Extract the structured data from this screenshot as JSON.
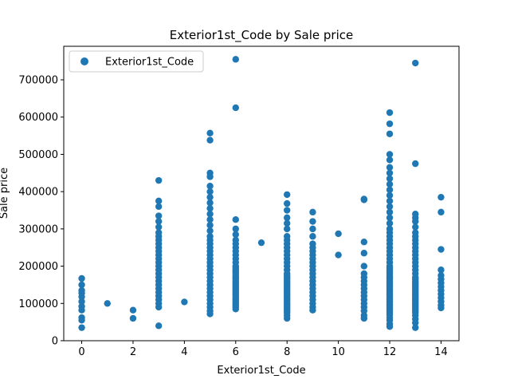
{
  "chart_data": {
    "type": "scatter",
    "title": "Exterior1st_Code by Sale price",
    "xlabel": "Exterior1st_Code",
    "ylabel": "Sale price",
    "xlim": [
      -0.7,
      14.7
    ],
    "ylim": [
      0,
      790000
    ],
    "xticks": [
      0,
      2,
      4,
      6,
      8,
      10,
      12,
      14
    ],
    "yticks": [
      0,
      100000,
      200000,
      300000,
      400000,
      500000,
      600000,
      700000
    ],
    "legend": {
      "position": "top-left",
      "entries": [
        "Exterior1st_Code"
      ]
    },
    "grid": false,
    "colors": {
      "point": "#1f77b4"
    },
    "series": [
      {
        "name": "Exterior1st_Code",
        "points": [
          [
            0,
            167000
          ],
          [
            0,
            150000
          ],
          [
            0,
            135000
          ],
          [
            0,
            128000
          ],
          [
            0,
            118000
          ],
          [
            0,
            105000
          ],
          [
            0,
            92000
          ],
          [
            0,
            82000
          ],
          [
            0,
            62000
          ],
          [
            0,
            55000
          ],
          [
            0,
            35000
          ],
          [
            1,
            100000
          ],
          [
            2,
            82000
          ],
          [
            2,
            60000
          ],
          [
            3,
            430000
          ],
          [
            3,
            375000
          ],
          [
            3,
            360000
          ],
          [
            3,
            335000
          ],
          [
            3,
            320000
          ],
          [
            3,
            305000
          ],
          [
            3,
            290000
          ],
          [
            3,
            280000
          ],
          [
            3,
            270000
          ],
          [
            3,
            260000
          ],
          [
            3,
            250000
          ],
          [
            3,
            240000
          ],
          [
            3,
            230000
          ],
          [
            3,
            220000
          ],
          [
            3,
            210000
          ],
          [
            3,
            200000
          ],
          [
            3,
            190000
          ],
          [
            3,
            180000
          ],
          [
            3,
            170000
          ],
          [
            3,
            160000
          ],
          [
            3,
            150000
          ],
          [
            3,
            140000
          ],
          [
            3,
            130000
          ],
          [
            3,
            120000
          ],
          [
            3,
            110000
          ],
          [
            3,
            100000
          ],
          [
            3,
            90000
          ],
          [
            3,
            40000
          ],
          [
            4,
            104000
          ],
          [
            5,
            557000
          ],
          [
            5,
            538000
          ],
          [
            5,
            450000
          ],
          [
            5,
            440000
          ],
          [
            5,
            415000
          ],
          [
            5,
            400000
          ],
          [
            5,
            385000
          ],
          [
            5,
            370000
          ],
          [
            5,
            355000
          ],
          [
            5,
            340000
          ],
          [
            5,
            325000
          ],
          [
            5,
            310000
          ],
          [
            5,
            295000
          ],
          [
            5,
            280000
          ],
          [
            5,
            270000
          ],
          [
            5,
            260000
          ],
          [
            5,
            250000
          ],
          [
            5,
            240000
          ],
          [
            5,
            230000
          ],
          [
            5,
            220000
          ],
          [
            5,
            210000
          ],
          [
            5,
            200000
          ],
          [
            5,
            190000
          ],
          [
            5,
            180000
          ],
          [
            5,
            170000
          ],
          [
            5,
            160000
          ],
          [
            5,
            150000
          ],
          [
            5,
            140000
          ],
          [
            5,
            130000
          ],
          [
            5,
            120000
          ],
          [
            5,
            110000
          ],
          [
            5,
            100000
          ],
          [
            5,
            90000
          ],
          [
            5,
            80000
          ],
          [
            5,
            72000
          ],
          [
            6,
            755000
          ],
          [
            6,
            625000
          ],
          [
            6,
            325000
          ],
          [
            6,
            300000
          ],
          [
            6,
            285000
          ],
          [
            6,
            270000
          ],
          [
            6,
            260000
          ],
          [
            6,
            250000
          ],
          [
            6,
            240000
          ],
          [
            6,
            230000
          ],
          [
            6,
            220000
          ],
          [
            6,
            210000
          ],
          [
            6,
            200000
          ],
          [
            6,
            195000
          ],
          [
            6,
            190000
          ],
          [
            6,
            185000
          ],
          [
            6,
            180000
          ],
          [
            6,
            175000
          ],
          [
            6,
            170000
          ],
          [
            6,
            165000
          ],
          [
            6,
            160000
          ],
          [
            6,
            155000
          ],
          [
            6,
            150000
          ],
          [
            6,
            145000
          ],
          [
            6,
            140000
          ],
          [
            6,
            135000
          ],
          [
            6,
            130000
          ],
          [
            6,
            125000
          ],
          [
            6,
            120000
          ],
          [
            6,
            115000
          ],
          [
            6,
            110000
          ],
          [
            6,
            105000
          ],
          [
            6,
            100000
          ],
          [
            6,
            95000
          ],
          [
            6,
            90000
          ],
          [
            6,
            85000
          ],
          [
            7,
            263000
          ],
          [
            8,
            392000
          ],
          [
            8,
            368000
          ],
          [
            8,
            350000
          ],
          [
            8,
            330000
          ],
          [
            8,
            315000
          ],
          [
            8,
            300000
          ],
          [
            8,
            280000
          ],
          [
            8,
            270000
          ],
          [
            8,
            260000
          ],
          [
            8,
            250000
          ],
          [
            8,
            240000
          ],
          [
            8,
            230000
          ],
          [
            8,
            220000
          ],
          [
            8,
            210000
          ],
          [
            8,
            200000
          ],
          [
            8,
            190000
          ],
          [
            8,
            180000
          ],
          [
            8,
            175000
          ],
          [
            8,
            170000
          ],
          [
            8,
            165000
          ],
          [
            8,
            160000
          ],
          [
            8,
            155000
          ],
          [
            8,
            150000
          ],
          [
            8,
            145000
          ],
          [
            8,
            140000
          ],
          [
            8,
            135000
          ],
          [
            8,
            130000
          ],
          [
            8,
            125000
          ],
          [
            8,
            120000
          ],
          [
            8,
            115000
          ],
          [
            8,
            110000
          ],
          [
            8,
            105000
          ],
          [
            8,
            100000
          ],
          [
            8,
            95000
          ],
          [
            8,
            90000
          ],
          [
            8,
            85000
          ],
          [
            8,
            80000
          ],
          [
            8,
            75000
          ],
          [
            8,
            68000
          ],
          [
            8,
            60000
          ],
          [
            9,
            345000
          ],
          [
            9,
            320000
          ],
          [
            9,
            300000
          ],
          [
            9,
            280000
          ],
          [
            9,
            260000
          ],
          [
            9,
            250000
          ],
          [
            9,
            240000
          ],
          [
            9,
            230000
          ],
          [
            9,
            220000
          ],
          [
            9,
            210000
          ],
          [
            9,
            200000
          ],
          [
            9,
            190000
          ],
          [
            9,
            180000
          ],
          [
            9,
            170000
          ],
          [
            9,
            160000
          ],
          [
            9,
            150000
          ],
          [
            9,
            140000
          ],
          [
            9,
            130000
          ],
          [
            9,
            120000
          ],
          [
            9,
            110000
          ],
          [
            9,
            100000
          ],
          [
            9,
            90000
          ],
          [
            9,
            82000
          ],
          [
            10,
            287000
          ],
          [
            10,
            230000
          ],
          [
            11,
            380000
          ],
          [
            11,
            378000
          ],
          [
            11,
            265000
          ],
          [
            11,
            235000
          ],
          [
            11,
            200000
          ],
          [
            11,
            180000
          ],
          [
            11,
            170000
          ],
          [
            11,
            160000
          ],
          [
            11,
            150000
          ],
          [
            11,
            140000
          ],
          [
            11,
            130000
          ],
          [
            11,
            120000
          ],
          [
            11,
            110000
          ],
          [
            11,
            100000
          ],
          [
            11,
            90000
          ],
          [
            11,
            80000
          ],
          [
            11,
            68000
          ],
          [
            11,
            60000
          ],
          [
            12,
            612000
          ],
          [
            12,
            582000
          ],
          [
            12,
            555000
          ],
          [
            12,
            500000
          ],
          [
            12,
            485000
          ],
          [
            12,
            465000
          ],
          [
            12,
            450000
          ],
          [
            12,
            435000
          ],
          [
            12,
            420000
          ],
          [
            12,
            405000
          ],
          [
            12,
            390000
          ],
          [
            12,
            375000
          ],
          [
            12,
            360000
          ],
          [
            12,
            345000
          ],
          [
            12,
            330000
          ],
          [
            12,
            315000
          ],
          [
            12,
            300000
          ],
          [
            12,
            290000
          ],
          [
            12,
            280000
          ],
          [
            12,
            270000
          ],
          [
            12,
            260000
          ],
          [
            12,
            250000
          ],
          [
            12,
            240000
          ],
          [
            12,
            230000
          ],
          [
            12,
            220000
          ],
          [
            12,
            210000
          ],
          [
            12,
            200000
          ],
          [
            12,
            195000
          ],
          [
            12,
            190000
          ],
          [
            12,
            185000
          ],
          [
            12,
            180000
          ],
          [
            12,
            175000
          ],
          [
            12,
            170000
          ],
          [
            12,
            165000
          ],
          [
            12,
            160000
          ],
          [
            12,
            155000
          ],
          [
            12,
            150000
          ],
          [
            12,
            145000
          ],
          [
            12,
            140000
          ],
          [
            12,
            135000
          ],
          [
            12,
            130000
          ],
          [
            12,
            125000
          ],
          [
            12,
            120000
          ],
          [
            12,
            115000
          ],
          [
            12,
            110000
          ],
          [
            12,
            105000
          ],
          [
            12,
            100000
          ],
          [
            12,
            95000
          ],
          [
            12,
            90000
          ],
          [
            12,
            85000
          ],
          [
            12,
            80000
          ],
          [
            12,
            75000
          ],
          [
            12,
            70000
          ],
          [
            12,
            62000
          ],
          [
            12,
            55000
          ],
          [
            12,
            45000
          ],
          [
            12,
            38000
          ],
          [
            13,
            745000
          ],
          [
            13,
            475000
          ],
          [
            13,
            340000
          ],
          [
            13,
            330000
          ],
          [
            13,
            320000
          ],
          [
            13,
            305000
          ],
          [
            13,
            290000
          ],
          [
            13,
            280000
          ],
          [
            13,
            270000
          ],
          [
            13,
            260000
          ],
          [
            13,
            250000
          ],
          [
            13,
            240000
          ],
          [
            13,
            230000
          ],
          [
            13,
            220000
          ],
          [
            13,
            210000
          ],
          [
            13,
            200000
          ],
          [
            13,
            190000
          ],
          [
            13,
            180000
          ],
          [
            13,
            170000
          ],
          [
            13,
            165000
          ],
          [
            13,
            160000
          ],
          [
            13,
            155000
          ],
          [
            13,
            150000
          ],
          [
            13,
            145000
          ],
          [
            13,
            140000
          ],
          [
            13,
            135000
          ],
          [
            13,
            130000
          ],
          [
            13,
            125000
          ],
          [
            13,
            120000
          ],
          [
            13,
            115000
          ],
          [
            13,
            110000
          ],
          [
            13,
            105000
          ],
          [
            13,
            100000
          ],
          [
            13,
            95000
          ],
          [
            13,
            90000
          ],
          [
            13,
            85000
          ],
          [
            13,
            80000
          ],
          [
            13,
            75000
          ],
          [
            13,
            68000
          ],
          [
            13,
            58000
          ],
          [
            13,
            48000
          ],
          [
            13,
            35000
          ],
          [
            14,
            385000
          ],
          [
            14,
            345000
          ],
          [
            14,
            245000
          ],
          [
            14,
            190000
          ],
          [
            14,
            175000
          ],
          [
            14,
            165000
          ],
          [
            14,
            155000
          ],
          [
            14,
            145000
          ],
          [
            14,
            135000
          ],
          [
            14,
            125000
          ],
          [
            14,
            115000
          ],
          [
            14,
            105000
          ],
          [
            14,
            95000
          ],
          [
            14,
            88000
          ]
        ]
      }
    ]
  }
}
